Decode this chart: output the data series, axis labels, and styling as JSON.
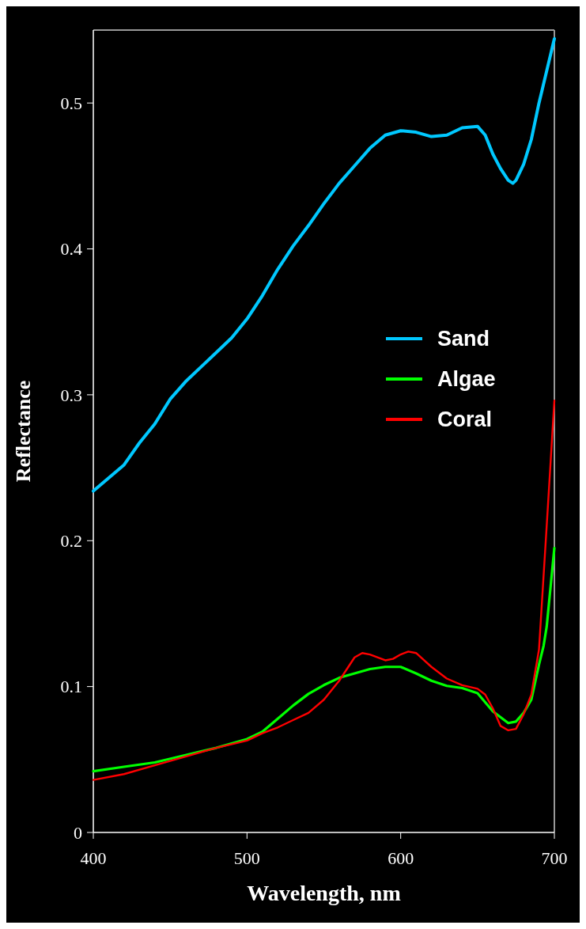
{
  "chart_data": {
    "type": "line",
    "xlabel": "Wavelength, nm",
    "ylabel": "Reflectance",
    "xlim": [
      400,
      700
    ],
    "ylim": [
      0,
      0.55
    ],
    "xticks": [
      400,
      500,
      600,
      700
    ],
    "yticks": [
      0,
      0.1,
      0.2,
      0.3,
      0.4,
      0.5
    ],
    "grid": false,
    "legend": "right",
    "marker": "none",
    "line_style": "solid",
    "series": [
      {
        "name": "Sand",
        "color": "#00c8ff",
        "x": [
          400,
          410,
          420,
          430,
          440,
          450,
          460,
          470,
          480,
          490,
          500,
          510,
          520,
          530,
          540,
          550,
          560,
          570,
          580,
          590,
          600,
          610,
          620,
          630,
          640,
          650,
          655,
          660,
          665,
          670,
          673,
          675,
          680,
          685,
          690,
          695,
          700
        ],
        "values": [
          0.234,
          0.243,
          0.252,
          0.267,
          0.28,
          0.297,
          0.309,
          0.319,
          0.329,
          0.339,
          0.352,
          0.368,
          0.386,
          0.402,
          0.416,
          0.431,
          0.445,
          0.457,
          0.469,
          0.478,
          0.481,
          0.48,
          0.477,
          0.478,
          0.483,
          0.484,
          0.478,
          0.465,
          0.455,
          0.447,
          0.445,
          0.447,
          0.458,
          0.475,
          0.5,
          0.522,
          0.544
        ]
      },
      {
        "name": "Algae",
        "color": "#00ff00",
        "x": [
          400,
          420,
          440,
          460,
          480,
          500,
          510,
          520,
          530,
          540,
          550,
          560,
          570,
          580,
          590,
          600,
          610,
          620,
          630,
          640,
          650,
          660,
          670,
          675,
          680,
          685,
          690,
          693,
          695,
          700
        ],
        "values": [
          0.042,
          0.045,
          0.048,
          0.053,
          0.058,
          0.064,
          0.069,
          0.078,
          0.087,
          0.095,
          0.101,
          0.106,
          0.109,
          0.112,
          0.1135,
          0.1135,
          0.109,
          0.104,
          0.1005,
          0.099,
          0.0955,
          0.083,
          0.075,
          0.076,
          0.082,
          0.091,
          0.115,
          0.128,
          0.141,
          0.195
        ]
      },
      {
        "name": "Coral",
        "color": "#ff0000",
        "x": [
          400,
          420,
          440,
          460,
          480,
          500,
          510,
          520,
          530,
          540,
          550,
          560,
          570,
          575,
          580,
          590,
          595,
          600,
          605,
          610,
          620,
          630,
          640,
          650,
          655,
          660,
          665,
          670,
          675,
          680,
          685,
          690,
          695,
          700
        ],
        "values": [
          0.036,
          0.04,
          0.046,
          0.052,
          0.058,
          0.063,
          0.068,
          0.072,
          0.077,
          0.082,
          0.091,
          0.104,
          0.12,
          0.123,
          0.122,
          0.118,
          0.119,
          0.122,
          0.124,
          0.123,
          0.1135,
          0.1055,
          0.101,
          0.0985,
          0.0945,
          0.085,
          0.073,
          0.07,
          0.071,
          0.081,
          0.0945,
          0.1255,
          0.21,
          0.296
        ]
      }
    ]
  }
}
